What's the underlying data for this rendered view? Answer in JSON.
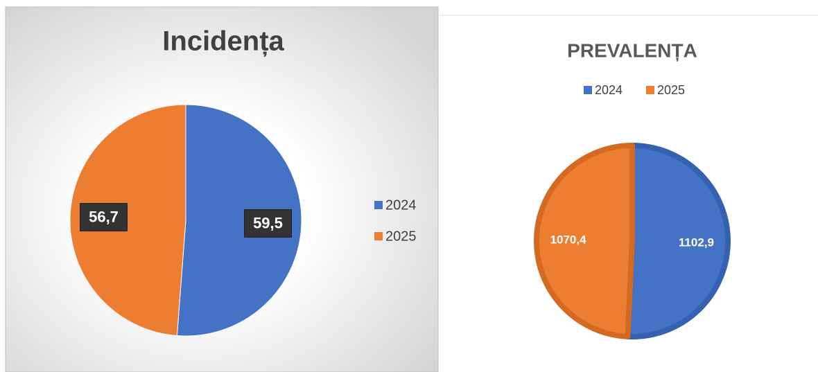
{
  "chart_data": [
    {
      "type": "pie",
      "title": "Incidența",
      "categories": [
        "2024",
        "2025"
      ],
      "values": [
        59.5,
        56.7
      ],
      "value_labels": [
        "59,5",
        "56,7"
      ],
      "colors": [
        "#4472c4",
        "#ed7d31"
      ],
      "legend": "right"
    },
    {
      "type": "pie",
      "title": "PREVALENȚA",
      "categories": [
        "2024",
        "2025"
      ],
      "values": [
        1102.9,
        1070.4
      ],
      "value_labels": [
        "1102,9",
        "1070,4"
      ],
      "colors": [
        "#4472c4",
        "#ed7d31"
      ],
      "legend": "top"
    }
  ]
}
